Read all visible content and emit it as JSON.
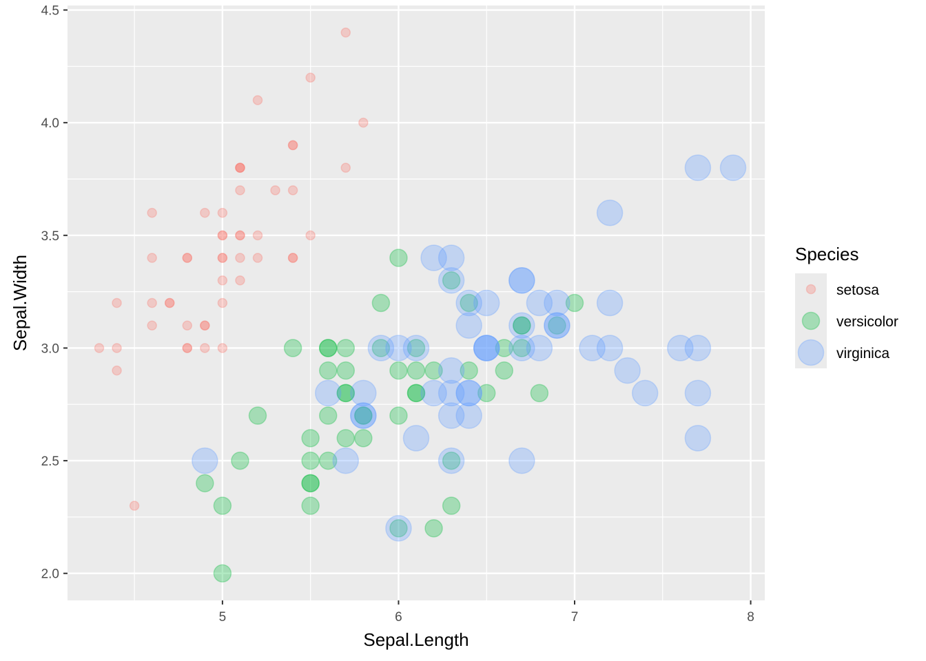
{
  "chart_data": {
    "type": "scatter",
    "xlabel": "Sepal.Length",
    "ylabel": "Sepal.Width",
    "xlim": [
      4.12,
      8.08
    ],
    "ylim": [
      1.88,
      4.52
    ],
    "x_ticks": [
      5,
      6,
      7,
      8
    ],
    "x_tick_labels": [
      "5",
      "6",
      "7",
      "8"
    ],
    "y_ticks": [
      2.0,
      2.5,
      3.0,
      3.5,
      4.0,
      4.5
    ],
    "y_tick_labels": [
      "2.0",
      "2.5",
      "3.0",
      "3.5",
      "4.0",
      "4.5"
    ],
    "grid": true,
    "panel_background": "#ebebeb",
    "legend": {
      "title": "Species",
      "placement": "right",
      "entries": [
        "setosa",
        "versicolor",
        "virginica"
      ]
    },
    "series": [
      {
        "name": "setosa",
        "color": "#f8766d",
        "point_size": "small",
        "points": [
          [
            5.1,
            3.5
          ],
          [
            4.9,
            3.0
          ],
          [
            4.7,
            3.2
          ],
          [
            4.6,
            3.1
          ],
          [
            5.0,
            3.6
          ],
          [
            5.4,
            3.9
          ],
          [
            4.6,
            3.4
          ],
          [
            5.0,
            3.4
          ],
          [
            4.4,
            2.9
          ],
          [
            4.9,
            3.1
          ],
          [
            5.4,
            3.7
          ],
          [
            4.8,
            3.4
          ],
          [
            4.8,
            3.0
          ],
          [
            4.3,
            3.0
          ],
          [
            5.8,
            4.0
          ],
          [
            5.7,
            4.4
          ],
          [
            5.4,
            3.9
          ],
          [
            5.1,
            3.5
          ],
          [
            5.7,
            3.8
          ],
          [
            5.1,
            3.8
          ],
          [
            5.4,
            3.4
          ],
          [
            5.1,
            3.7
          ],
          [
            4.6,
            3.6
          ],
          [
            5.1,
            3.3
          ],
          [
            4.8,
            3.4
          ],
          [
            5.0,
            3.0
          ],
          [
            5.0,
            3.4
          ],
          [
            5.2,
            3.5
          ],
          [
            5.2,
            3.4
          ],
          [
            4.7,
            3.2
          ],
          [
            4.8,
            3.1
          ],
          [
            5.4,
            3.4
          ],
          [
            5.2,
            4.1
          ],
          [
            5.5,
            4.2
          ],
          [
            4.9,
            3.1
          ],
          [
            5.0,
            3.2
          ],
          [
            5.5,
            3.5
          ],
          [
            4.9,
            3.6
          ],
          [
            4.4,
            3.0
          ],
          [
            5.1,
            3.4
          ],
          [
            5.0,
            3.5
          ],
          [
            4.5,
            2.3
          ],
          [
            4.4,
            3.2
          ],
          [
            5.0,
            3.5
          ],
          [
            5.1,
            3.8
          ],
          [
            4.8,
            3.0
          ],
          [
            5.1,
            3.8
          ],
          [
            4.6,
            3.2
          ],
          [
            5.3,
            3.7
          ],
          [
            5.0,
            3.3
          ]
        ]
      },
      {
        "name": "versicolor",
        "color": "#00ba38",
        "point_size": "medium",
        "points": [
          [
            7.0,
            3.2
          ],
          [
            6.4,
            3.2
          ],
          [
            6.9,
            3.1
          ],
          [
            5.5,
            2.3
          ],
          [
            6.5,
            2.8
          ],
          [
            5.7,
            2.8
          ],
          [
            6.3,
            3.3
          ],
          [
            4.9,
            2.4
          ],
          [
            6.6,
            2.9
          ],
          [
            5.2,
            2.7
          ],
          [
            5.0,
            2.0
          ],
          [
            5.9,
            3.0
          ],
          [
            6.0,
            2.2
          ],
          [
            6.1,
            2.9
          ],
          [
            5.6,
            2.9
          ],
          [
            6.7,
            3.1
          ],
          [
            5.6,
            3.0
          ],
          [
            5.8,
            2.7
          ],
          [
            6.2,
            2.2
          ],
          [
            5.6,
            2.5
          ],
          [
            5.9,
            3.2
          ],
          [
            6.1,
            2.8
          ],
          [
            6.3,
            2.5
          ],
          [
            6.1,
            2.8
          ],
          [
            6.4,
            2.9
          ],
          [
            6.6,
            3.0
          ],
          [
            6.8,
            2.8
          ],
          [
            6.7,
            3.0
          ],
          [
            6.0,
            2.9
          ],
          [
            5.7,
            2.6
          ],
          [
            5.5,
            2.4
          ],
          [
            5.5,
            2.4
          ],
          [
            5.8,
            2.7
          ],
          [
            6.0,
            2.7
          ],
          [
            5.4,
            3.0
          ],
          [
            6.0,
            3.4
          ],
          [
            6.7,
            3.1
          ],
          [
            6.3,
            2.3
          ],
          [
            5.6,
            3.0
          ],
          [
            5.5,
            2.5
          ],
          [
            5.5,
            2.6
          ],
          [
            6.1,
            3.0
          ],
          [
            5.8,
            2.6
          ],
          [
            5.0,
            2.3
          ],
          [
            5.6,
            2.7
          ],
          [
            5.7,
            3.0
          ],
          [
            5.7,
            2.9
          ],
          [
            6.2,
            2.9
          ],
          [
            5.1,
            2.5
          ],
          [
            5.7,
            2.8
          ]
        ]
      },
      {
        "name": "virginica",
        "color": "#619cff",
        "point_size": "large",
        "points": [
          [
            6.3,
            3.3
          ],
          [
            5.8,
            2.7
          ],
          [
            7.1,
            3.0
          ],
          [
            6.3,
            2.9
          ],
          [
            6.5,
            3.0
          ],
          [
            7.6,
            3.0
          ],
          [
            4.9,
            2.5
          ],
          [
            7.3,
            2.9
          ],
          [
            6.7,
            2.5
          ],
          [
            7.2,
            3.6
          ],
          [
            6.5,
            3.2
          ],
          [
            6.4,
            2.7
          ],
          [
            6.8,
            3.0
          ],
          [
            5.7,
            2.5
          ],
          [
            5.8,
            2.8
          ],
          [
            6.4,
            3.2
          ],
          [
            6.5,
            3.0
          ],
          [
            7.7,
            3.8
          ],
          [
            7.7,
            2.6
          ],
          [
            6.0,
            2.2
          ],
          [
            6.9,
            3.2
          ],
          [
            5.6,
            2.8
          ],
          [
            7.7,
            2.8
          ],
          [
            6.3,
            2.7
          ],
          [
            6.7,
            3.3
          ],
          [
            7.2,
            3.2
          ],
          [
            6.2,
            2.8
          ],
          [
            6.1,
            3.0
          ],
          [
            6.4,
            2.8
          ],
          [
            7.2,
            3.0
          ],
          [
            7.4,
            2.8
          ],
          [
            7.9,
            3.8
          ],
          [
            6.4,
            2.8
          ],
          [
            6.3,
            2.8
          ],
          [
            6.1,
            2.6
          ],
          [
            7.7,
            3.0
          ],
          [
            6.3,
            3.4
          ],
          [
            6.4,
            3.1
          ],
          [
            6.0,
            3.0
          ],
          [
            6.9,
            3.1
          ],
          [
            6.7,
            3.1
          ],
          [
            6.9,
            3.1
          ],
          [
            5.8,
            2.7
          ],
          [
            6.8,
            3.2
          ],
          [
            6.7,
            3.3
          ],
          [
            6.7,
            3.0
          ],
          [
            6.3,
            2.5
          ],
          [
            6.5,
            3.0
          ],
          [
            6.2,
            3.4
          ],
          [
            5.9,
            3.0
          ]
        ]
      }
    ]
  }
}
